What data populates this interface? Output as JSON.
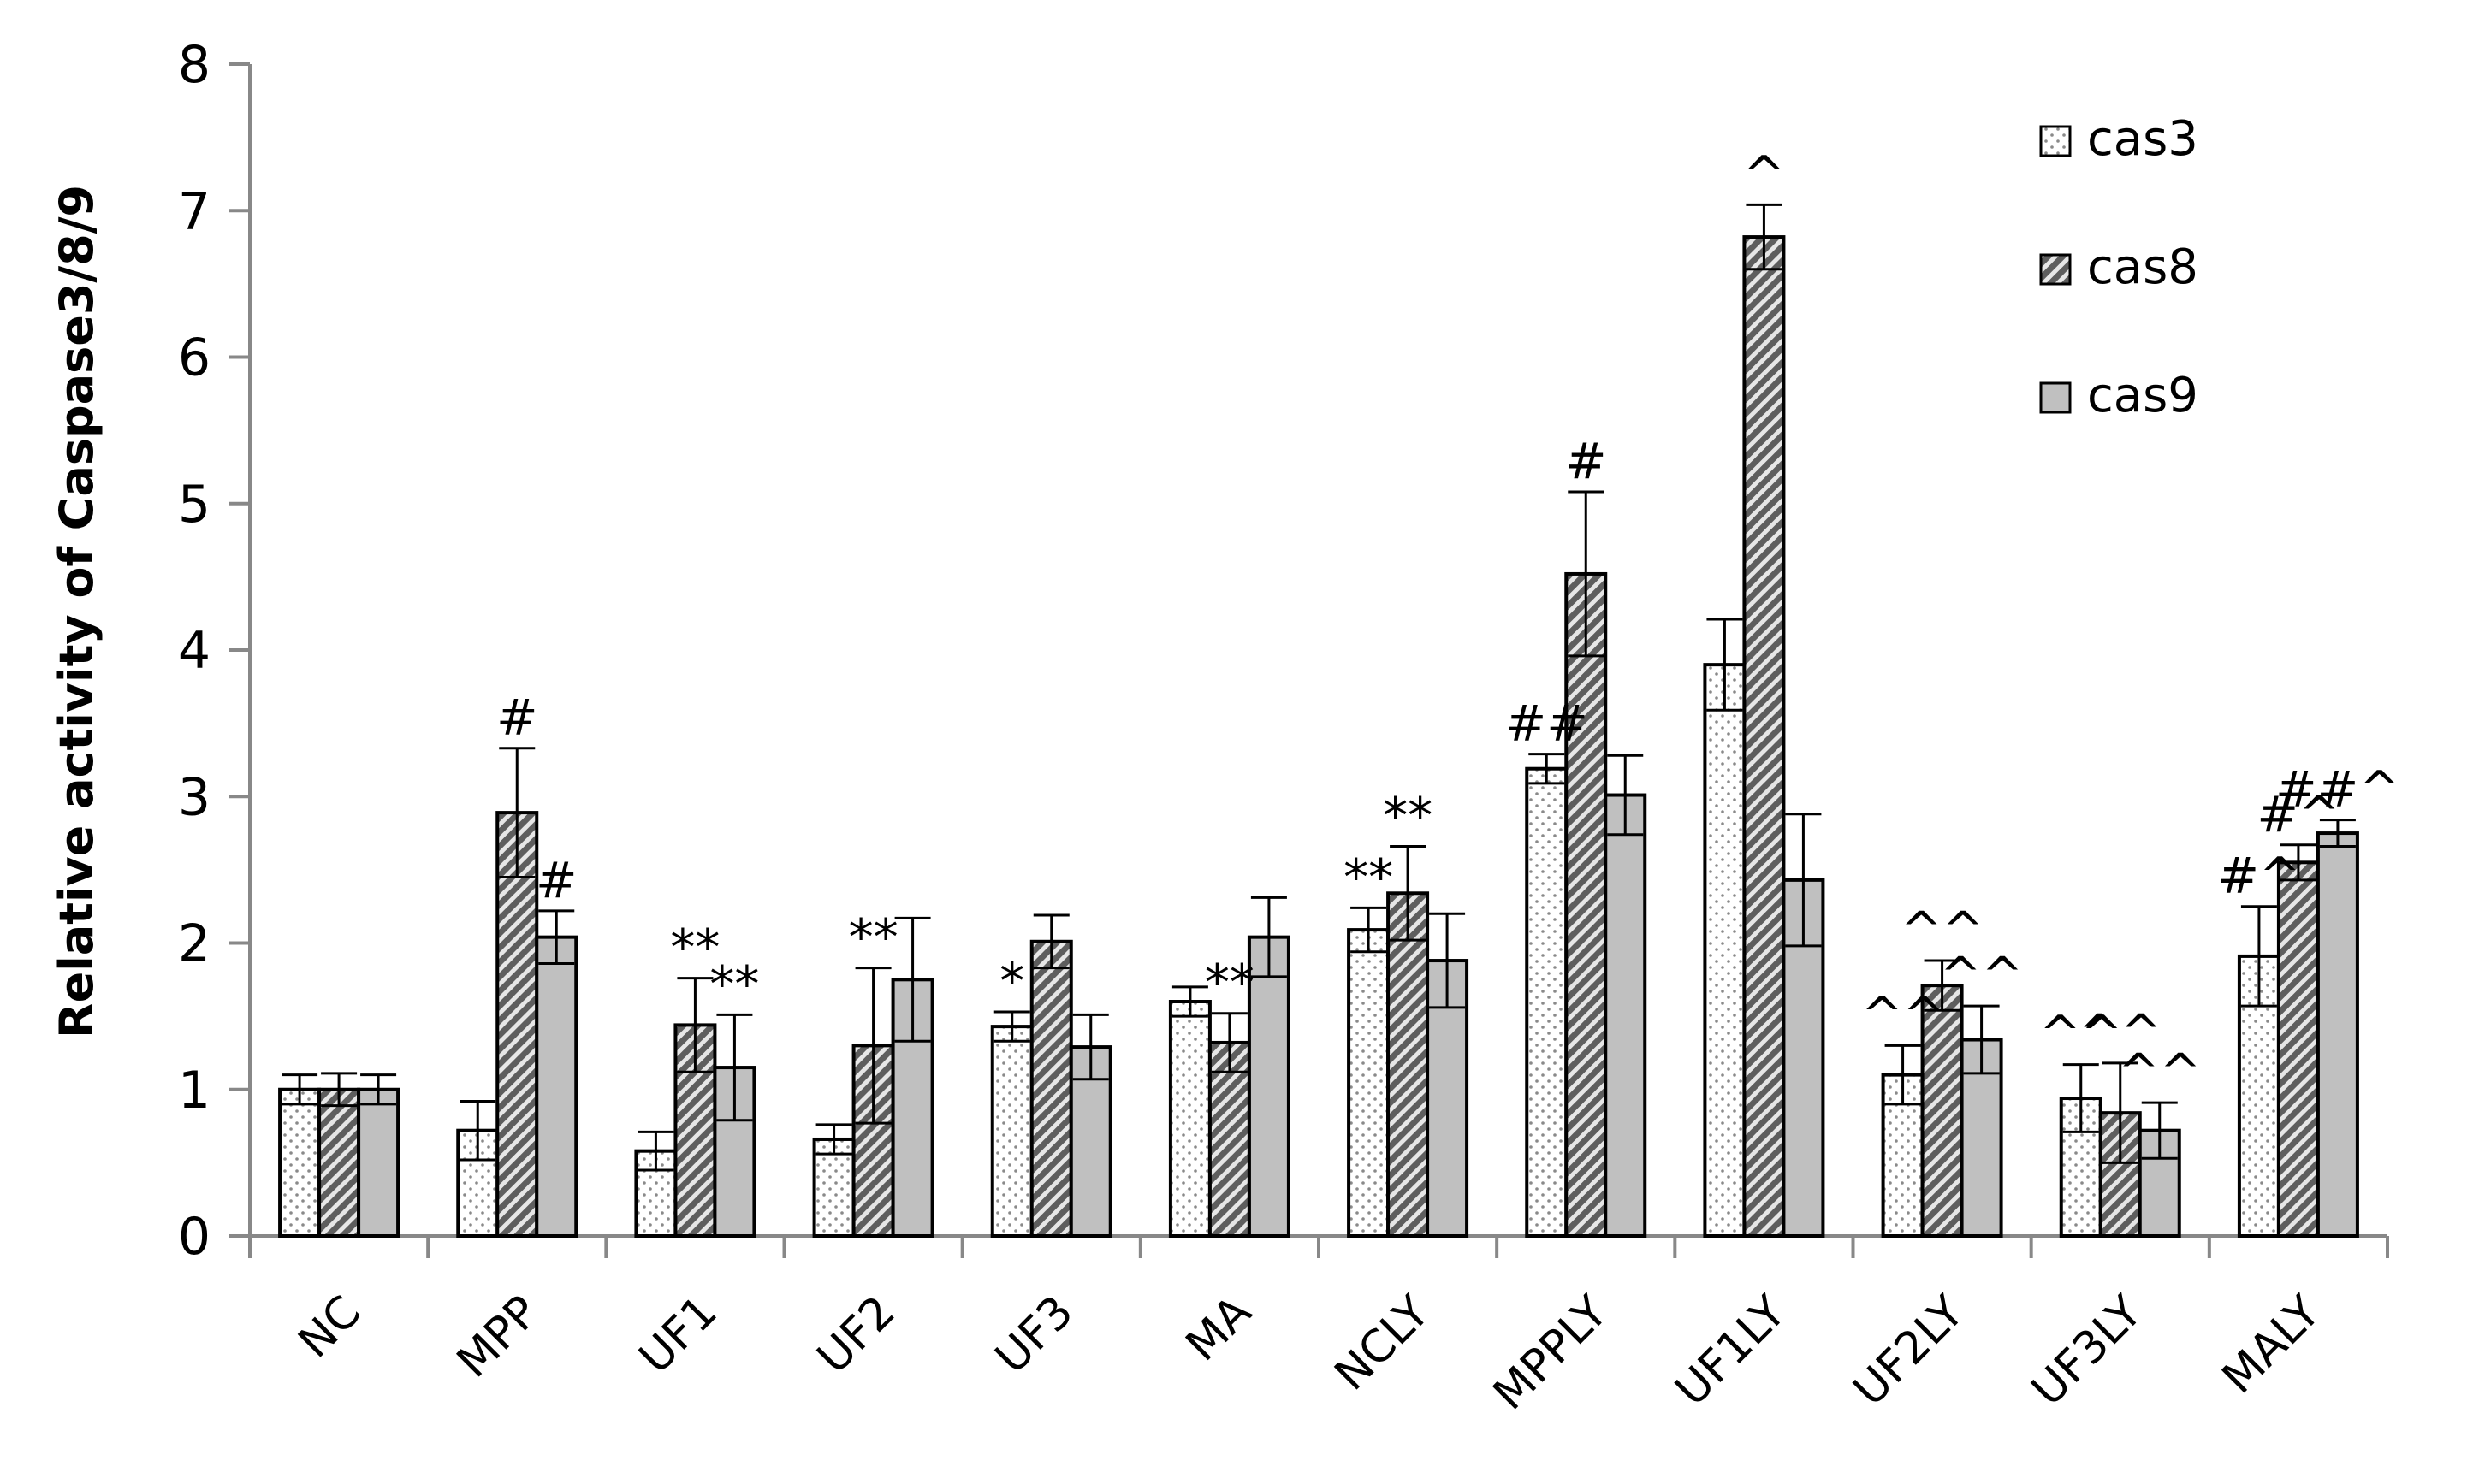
{
  "chart_data": {
    "type": "bar",
    "ylabel": "Relative activity of Caspase3/8/9",
    "xlabel": "",
    "ylim": [
      0,
      8
    ],
    "yticks": [
      0,
      1,
      2,
      3,
      4,
      5,
      6,
      7,
      8
    ],
    "grid": false,
    "legend_position": "top-right",
    "categories": [
      "NC",
      "MPP",
      "UF1",
      "UF2",
      "UF3",
      "MA",
      "NCLY",
      "MPPLY",
      "UF1LY",
      "UF2LY",
      "UF3LY",
      "MALY"
    ],
    "series": [
      {
        "name": "cas3",
        "values": [
          1.0,
          0.72,
          0.58,
          0.66,
          1.43,
          1.6,
          2.09,
          3.19,
          3.9,
          1.1,
          0.94,
          1.91
        ],
        "errors": [
          0.1,
          0.2,
          0.13,
          0.1,
          0.1,
          0.1,
          0.15,
          0.1,
          0.31,
          0.2,
          0.23,
          0.34
        ],
        "annotations": [
          "",
          "",
          "",
          "",
          "*",
          "",
          "**",
          "##",
          "",
          "^^",
          "^^",
          "#^"
        ]
      },
      {
        "name": "cas8",
        "values": [
          1.0,
          2.89,
          1.44,
          1.3,
          2.01,
          1.32,
          2.34,
          4.52,
          6.82,
          1.71,
          0.84,
          2.55
        ],
        "errors": [
          0.11,
          0.44,
          0.32,
          0.53,
          0.18,
          0.2,
          0.32,
          0.56,
          0.22,
          0.17,
          0.34,
          0.12
        ],
        "annotations": [
          "",
          "#",
          "**",
          "**",
          "",
          "**",
          "**",
          "#",
          "^",
          "^^",
          "^^",
          "#^"
        ]
      },
      {
        "name": "cas9",
        "values": [
          1.0,
          2.04,
          1.15,
          1.75,
          1.29,
          2.04,
          1.88,
          3.01,
          2.43,
          1.34,
          0.72,
          2.75
        ],
        "errors": [
          0.1,
          0.18,
          0.36,
          0.42,
          0.22,
          0.27,
          0.32,
          0.27,
          0.45,
          0.23,
          0.19,
          0.09
        ],
        "annotations": [
          "",
          "#",
          "**",
          "",
          "",
          "",
          "",
          "",
          "",
          "^^",
          "^^",
          "##^"
        ]
      }
    ],
    "series_colors": {
      "cas3": "#ffffff",
      "cas8": "#8c8c8c",
      "cas9": "#c0c0c0"
    }
  }
}
